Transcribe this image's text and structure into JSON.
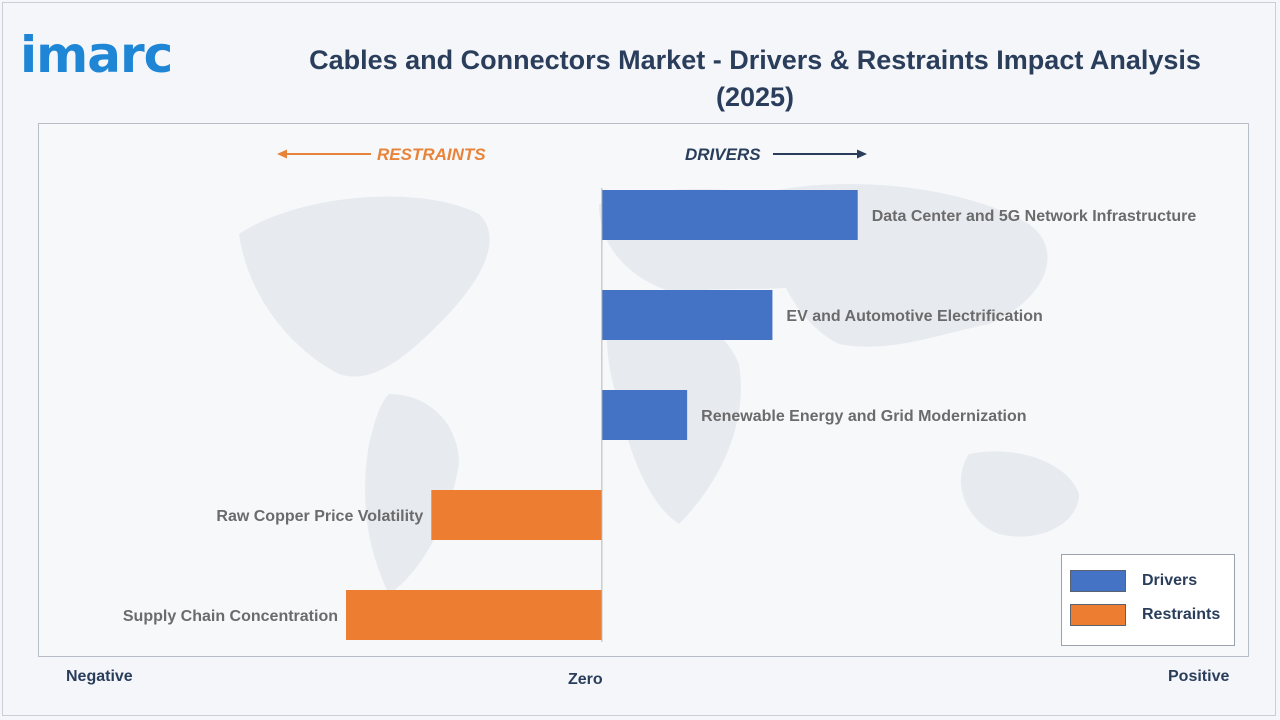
{
  "brand": {
    "logo_text": "imarc"
  },
  "header": {
    "title": "Cables and Connectors Market - Drivers & Restraints Impact Analysis (2025)"
  },
  "colors": {
    "drivers": "#4472c4",
    "restraints": "#ed7d31",
    "title": "#2a3e5c",
    "logo": "#1f86d6",
    "arrow_restraints": "#e8833a",
    "arrow_drivers": "#2a3e5c"
  },
  "directions": {
    "restraints": "RESTRAINTS",
    "drivers": "DRIVERS"
  },
  "axis": {
    "negative": "Negative",
    "zero": "Zero",
    "positive": "Positive"
  },
  "legend": {
    "drivers": "Drivers",
    "restraints": "Restraints"
  },
  "chart_data": {
    "type": "bar",
    "orientation": "horizontal",
    "title": "Cables and Connectors Market - Drivers & Restraints Impact Analysis (2025)",
    "categories": [
      "Data Center and 5G Network Infrastructure",
      "EV and Automotive Electrification",
      "Renewable Energy and Grid Modernization",
      "Raw Copper Price Volatility",
      "Supply Chain Concentration"
    ],
    "values": [
      3.0,
      2.0,
      1.0,
      -2.0,
      -3.0
    ],
    "groups": [
      "Drivers",
      "Drivers",
      "Drivers",
      "Restraints",
      "Restraints"
    ],
    "xlim": [
      -6.6,
      7.6
    ],
    "grid": false,
    "legend_position": "bottom-right"
  }
}
